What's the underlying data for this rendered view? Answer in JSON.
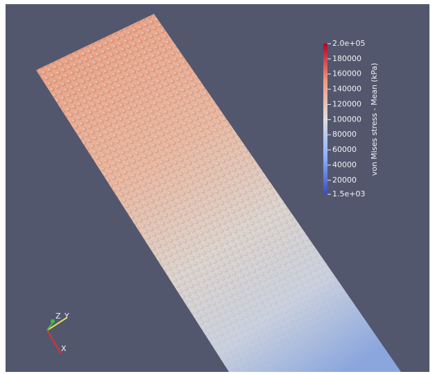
{
  "legend": {
    "title": "von Mises stress - Mean (kPa)",
    "range": [
      1500,
      200000
    ],
    "ticks": [
      {
        "value": 200000,
        "label": "2.0e+05"
      },
      180000,
      160000,
      140000,
      120000,
      100000,
      80000,
      60000,
      40000,
      20000,
      {
        "value": 1500,
        "label": "1.5e+03"
      }
    ]
  },
  "orientation_axes": {
    "labels": [
      "Z",
      "Y",
      "X"
    ]
  }
}
